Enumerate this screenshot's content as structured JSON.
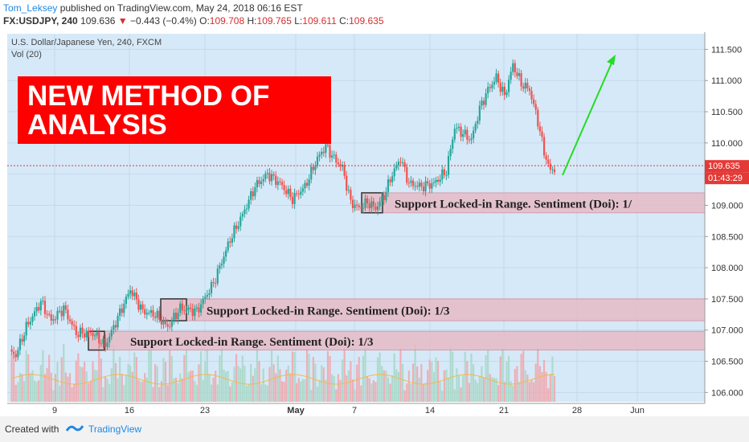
{
  "header": {
    "author": "Tom_Leksey",
    "published": " published on TradingView.com, May 24, 2018 06:16 EST",
    "symbol": "FX:USDJPY, 240",
    "last": "109.636",
    "change_arrow": "▼",
    "change": "−0.443 (−0.4%)",
    "o_label": "O:",
    "o_val": "109.708",
    "h_label": "H:",
    "h_val": "109.765",
    "l_label": "L:",
    "l_val": "109.611",
    "c_label": "C:",
    "c_val": "109.635"
  },
  "chart_meta": {
    "instrument": "U.S. Dollar/Japanese Yen, 240, FXCM",
    "volume": "Vol (20)",
    "price_tag": "109.635",
    "countdown": "01:43:29"
  },
  "banner": {
    "line1": "NEW METHOD OF",
    "line2": "ANALYSIS"
  },
  "annotations": [
    "Support Locked-in Range. Sentiment (Doi): 1/3",
    "Support Locked-in Range. Sentiment (Doi): 1/3",
    "Support Locked-in Range. Sentiment (Doi): 1/"
  ],
  "footer": {
    "created": "Created with",
    "brand": "TradingView"
  },
  "colors": {
    "up": "#26a69a",
    "down": "#ef5350",
    "bg": "#d6e9f8",
    "zone": "#e8b9c3",
    "arrow": "#22dd22",
    "banner": "#ff0000"
  },
  "chart_data": {
    "type": "candlestick",
    "title": "U.S. Dollar/Japanese Yen, 240, FXCM",
    "y_ticks": [
      106.0,
      106.5,
      107.0,
      107.5,
      108.0,
      108.5,
      109.0,
      109.5,
      110.0,
      110.5,
      111.0,
      111.5
    ],
    "ylim": [
      105.85,
      111.75
    ],
    "x_ticks": [
      "9",
      "16",
      "23",
      "May",
      "7",
      "14",
      "21",
      "28",
      "Jun"
    ],
    "current_price": 109.635,
    "zones": [
      {
        "low": 106.68,
        "high": 106.98
      },
      {
        "low": 107.15,
        "high": 107.5
      },
      {
        "low": 108.88,
        "high": 109.2
      }
    ],
    "waypoints": [
      [
        0,
        106.65
      ],
      [
        3,
        106.6
      ],
      [
        8,
        107.05
      ],
      [
        15,
        107.45
      ],
      [
        20,
        107.15
      ],
      [
        26,
        107.35
      ],
      [
        32,
        106.95
      ],
      [
        40,
        106.95
      ],
      [
        46,
        106.75
      ],
      [
        52,
        107.2
      ],
      [
        58,
        107.65
      ],
      [
        64,
        107.3
      ],
      [
        70,
        107.25
      ],
      [
        76,
        107.05
      ],
      [
        82,
        107.35
      ],
      [
        90,
        107.3
      ],
      [
        98,
        107.75
      ],
      [
        106,
        108.45
      ],
      [
        112,
        108.85
      ],
      [
        118,
        109.3
      ],
      [
        124,
        109.5
      ],
      [
        130,
        109.35
      ],
      [
        136,
        109.1
      ],
      [
        142,
        109.3
      ],
      [
        148,
        109.75
      ],
      [
        152,
        109.95
      ],
      [
        156,
        109.75
      ],
      [
        160,
        109.6
      ],
      [
        164,
        109.05
      ],
      [
        168,
        108.95
      ],
      [
        172,
        109.05
      ],
      [
        176,
        108.95
      ],
      [
        180,
        109.15
      ],
      [
        184,
        109.5
      ],
      [
        188,
        109.75
      ],
      [
        192,
        109.35
      ],
      [
        198,
        109.3
      ],
      [
        204,
        109.35
      ],
      [
        210,
        109.55
      ],
      [
        214,
        110.25
      ],
      [
        218,
        110.15
      ],
      [
        222,
        110.05
      ],
      [
        226,
        110.55
      ],
      [
        230,
        110.85
      ],
      [
        234,
        111.05
      ],
      [
        238,
        110.75
      ],
      [
        242,
        111.25
      ],
      [
        246,
        110.95
      ],
      [
        250,
        110.85
      ],
      [
        254,
        110.35
      ],
      [
        257,
        109.85
      ],
      [
        260,
        109.55
      ],
      [
        262,
        109.6
      ]
    ],
    "volume_axis": "Vol (20)"
  }
}
